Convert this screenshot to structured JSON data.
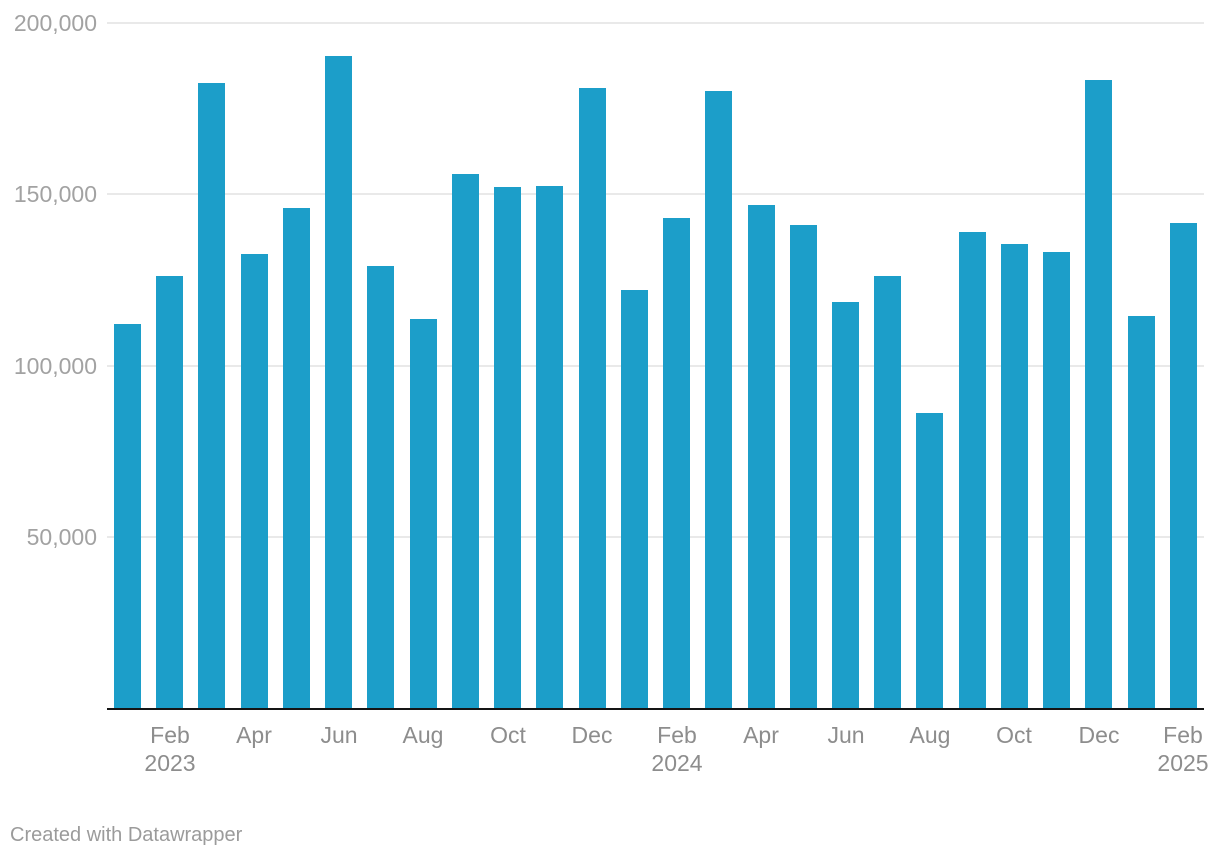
{
  "chart_data": {
    "type": "bar",
    "categories": [
      "Jan 2023",
      "Feb 2023",
      "Mar 2023",
      "Apr 2023",
      "May 2023",
      "Jun 2023",
      "Jul 2023",
      "Aug 2023",
      "Sep 2023",
      "Oct 2023",
      "Nov 2023",
      "Dec 2023",
      "Jan 2024",
      "Feb 2024",
      "Mar 2024",
      "Apr 2024",
      "May 2024",
      "Jun 2024",
      "Jul 2024",
      "Aug 2024",
      "Sep 2024",
      "Oct 2024",
      "Nov 2024",
      "Dec 2024",
      "Jan 2025",
      "Feb 2025"
    ],
    "values": [
      112000,
      126000,
      182500,
      132500,
      146000,
      190500,
      129000,
      113500,
      156000,
      152000,
      152500,
      181000,
      122000,
      143000,
      180000,
      147000,
      141000,
      118500,
      126000,
      86000,
      139000,
      135500,
      133000,
      183500,
      114500,
      141500
    ],
    "ylim": [
      0,
      200000
    ],
    "grid": "horizontal",
    "legend": "none",
    "y_ticks": [
      {
        "value": 50000,
        "label": "50,000"
      },
      {
        "value": 100000,
        "label": "100,000"
      },
      {
        "value": 150000,
        "label": "150,000"
      },
      {
        "value": 200000,
        "label": "200,000"
      }
    ],
    "x_ticks": [
      {
        "bar_index": 1,
        "label": "Feb",
        "year": "2023"
      },
      {
        "bar_index": 3,
        "label": "Apr"
      },
      {
        "bar_index": 5,
        "label": "Jun"
      },
      {
        "bar_index": 7,
        "label": "Aug"
      },
      {
        "bar_index": 9,
        "label": "Oct"
      },
      {
        "bar_index": 11,
        "label": "Dec"
      },
      {
        "bar_index": 13,
        "label": "Feb",
        "year": "2024"
      },
      {
        "bar_index": 15,
        "label": "Apr"
      },
      {
        "bar_index": 17,
        "label": "Jun"
      },
      {
        "bar_index": 19,
        "label": "Aug"
      },
      {
        "bar_index": 21,
        "label": "Oct"
      },
      {
        "bar_index": 23,
        "label": "Dec"
      },
      {
        "bar_index": 25,
        "label": "Feb",
        "year": "2025"
      }
    ],
    "colors": {
      "bar": "#1C9EC9",
      "gridline": "#E9E9E9",
      "axis_line": "#151515",
      "y_tick_text": "#A2A2A2",
      "x_tick_text": "#8D8D8D"
    }
  },
  "footer": {
    "credit": "Created with Datawrapper",
    "credit_color": "#9B9B9B"
  }
}
